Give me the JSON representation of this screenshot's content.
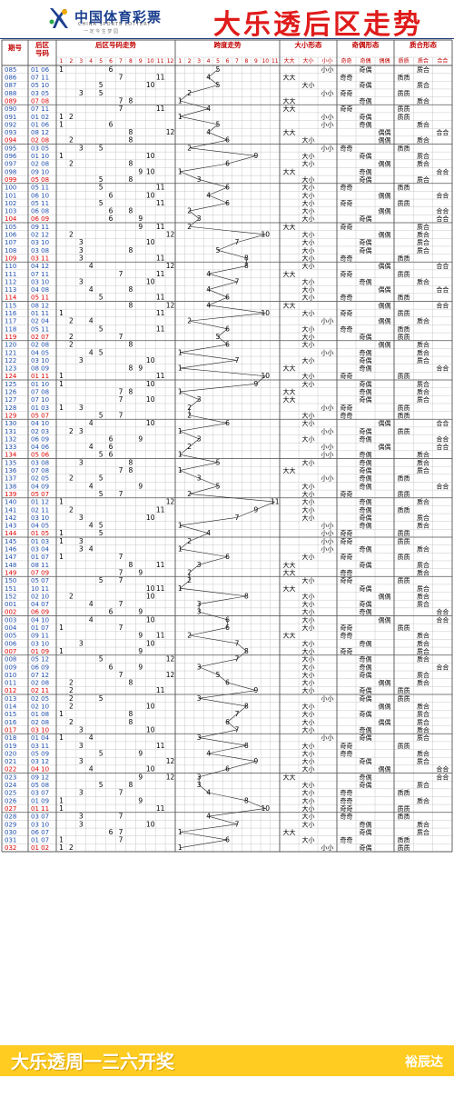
{
  "header": {
    "brand_name": "中国体育彩票",
    "brand_sub": "CHINA SPORTS LOTTERY",
    "brand_slogan": "一 定 今 生 梦 园",
    "title": "大乐透后区走势",
    "colors": {
      "title": "#e01b1b",
      "brand": "#1b3f8f",
      "red_period": "#e00000",
      "blue_period": "#1f4fae"
    }
  },
  "columns": {
    "period": "期号",
    "back_nums": "后区号码",
    "trend": "后区号码走势",
    "span": "跨度走势",
    "size": "大小形态",
    "parity": "奇偶形态",
    "prime": "质合形态",
    "trend_cells": [
      "1",
      "2",
      "3",
      "4",
      "5",
      "6",
      "7",
      "8",
      "9",
      "10",
      "11",
      "12"
    ],
    "span_cells": [
      "1",
      "2",
      "3",
      "4",
      "5",
      "6",
      "7",
      "8",
      "9",
      "10",
      "11"
    ],
    "size_cells": [
      "大大",
      "大小",
      "小小"
    ],
    "parity_cells": [
      "奇奇",
      "奇偶",
      "偶偶"
    ],
    "prime_cells": [
      "质质",
      "质合",
      "合合"
    ]
  },
  "footer": {
    "text": "大乐透周一三六开奖",
    "brand": "裕辰达"
  },
  "rows": [
    {
      "p": "085",
      "n": "01 06",
      "sp": 5,
      "sz": "小小",
      "pa": "奇偶",
      "pr": "质合"
    },
    {
      "p": "086",
      "n": "07 11",
      "sp": 4,
      "sz": "大大",
      "pa": "奇奇",
      "pr": "质质"
    },
    {
      "p": "087",
      "n": "05 10",
      "sp": 5,
      "sz": "大小",
      "pa": "奇偶",
      "pr": "质合"
    },
    {
      "p": "088",
      "n": "03 05",
      "sp": 2,
      "sz": "小小",
      "pa": "奇奇",
      "pr": "质质"
    },
    {
      "p": "089",
      "n": "07 08",
      "sp": 1,
      "sz": "大大",
      "pa": "奇偶",
      "pr": "质合"
    },
    {
      "p": "090",
      "n": "07 11",
      "sp": 4,
      "sz": "大大",
      "pa": "奇奇",
      "pr": "质质"
    },
    {
      "p": "091",
      "n": "01 02",
      "sp": 1,
      "sz": "小小",
      "pa": "奇偶",
      "pr": "质质"
    },
    {
      "p": "092",
      "n": "01 06",
      "sp": 5,
      "sz": "小小",
      "pa": "奇偶",
      "pr": "质合"
    },
    {
      "p": "093",
      "n": "08 12",
      "sp": 4,
      "sz": "大大",
      "pa": "偶偶",
      "pr": "合合"
    },
    {
      "p": "094",
      "n": "02 08",
      "sp": 6,
      "sz": "大小",
      "pa": "偶偶",
      "pr": "质合"
    },
    {
      "p": "095",
      "n": "03 05",
      "sp": 2,
      "sz": "小小",
      "pa": "奇奇",
      "pr": "质质"
    },
    {
      "p": "096",
      "n": "01 10",
      "sp": 9,
      "sz": "大小",
      "pa": "奇偶",
      "pr": "质合"
    },
    {
      "p": "097",
      "n": "02 08",
      "sp": 6,
      "sz": "大小",
      "pa": "偶偶",
      "pr": "质合"
    },
    {
      "p": "098",
      "n": "09 10",
      "sp": 1,
      "sz": "大大",
      "pa": "奇偶",
      "pr": "合合"
    },
    {
      "p": "099",
      "n": "05 08",
      "sp": 3,
      "sz": "大小",
      "pa": "奇偶",
      "pr": "质合"
    },
    {
      "p": "100",
      "n": "05 11",
      "sp": 6,
      "sz": "大小",
      "pa": "奇奇",
      "pr": "质质"
    },
    {
      "p": "101",
      "n": "06 10",
      "sp": 4,
      "sz": "大小",
      "pa": "偶偶",
      "pr": "合合"
    },
    {
      "p": "102",
      "n": "05 11",
      "sp": 6,
      "sz": "大小",
      "pa": "奇奇",
      "pr": "质质"
    },
    {
      "p": "103",
      "n": "06 08",
      "sp": 2,
      "sz": "大小",
      "pa": "偶偶",
      "pr": "合合"
    },
    {
      "p": "104",
      "n": "06 09",
      "sp": 3,
      "sz": "大小",
      "pa": "奇偶",
      "pr": "合合"
    },
    {
      "p": "105",
      "n": "09 11",
      "sp": 2,
      "sz": "大大",
      "pa": "奇奇",
      "pr": "质合"
    },
    {
      "p": "106",
      "n": "02 12",
      "sp": 10,
      "sz": "大小",
      "pa": "偶偶",
      "pr": "质合"
    },
    {
      "p": "107",
      "n": "03 10",
      "sp": 7,
      "sz": "大小",
      "pa": "奇偶",
      "pr": "质合"
    },
    {
      "p": "108",
      "n": "03 08",
      "sp": 5,
      "sz": "大小",
      "pa": "奇偶",
      "pr": "质合"
    },
    {
      "p": "109",
      "n": "03 11",
      "sp": 8,
      "sz": "大小",
      "pa": "奇奇",
      "pr": "质质"
    },
    {
      "p": "110",
      "n": "04 12",
      "sp": 8,
      "sz": "大小",
      "pa": "偶偶",
      "pr": "合合"
    },
    {
      "p": "111",
      "n": "07 11",
      "sp": 4,
      "sz": "大大",
      "pa": "奇奇",
      "pr": "质质"
    },
    {
      "p": "112",
      "n": "03 10",
      "sp": 7,
      "sz": "大小",
      "pa": "奇偶",
      "pr": "质合"
    },
    {
      "p": "113",
      "n": "04 08",
      "sp": 4,
      "sz": "大小",
      "pa": "偶偶",
      "pr": "合合"
    },
    {
      "p": "114",
      "n": "05 11",
      "sp": 6,
      "sz": "大小",
      "pa": "奇奇",
      "pr": "质质"
    },
    {
      "p": "115",
      "n": "08 12",
      "sp": 4,
      "sz": "大大",
      "pa": "偶偶",
      "pr": "合合"
    },
    {
      "p": "116",
      "n": "01 11",
      "sp": 10,
      "sz": "大小",
      "pa": "奇奇",
      "pr": "质质"
    },
    {
      "p": "117",
      "n": "02 04",
      "sp": 2,
      "sz": "小小",
      "pa": "偶偶",
      "pr": "质合"
    },
    {
      "p": "118",
      "n": "05 11",
      "sp": 6,
      "sz": "大小",
      "pa": "奇奇",
      "pr": "质质"
    },
    {
      "p": "119",
      "n": "02 07",
      "sp": 5,
      "sz": "大小",
      "pa": "奇偶",
      "pr": "质质"
    },
    {
      "p": "120",
      "n": "02 08",
      "sp": 6,
      "sz": "大小",
      "pa": "偶偶",
      "pr": "质合"
    },
    {
      "p": "121",
      "n": "04 05",
      "sp": 1,
      "sz": "小小",
      "pa": "奇偶",
      "pr": "质合"
    },
    {
      "p": "122",
      "n": "03 10",
      "sp": 7,
      "sz": "大小",
      "pa": "奇偶",
      "pr": "质合"
    },
    {
      "p": "123",
      "n": "08 09",
      "sp": 1,
      "sz": "大大",
      "pa": "奇偶",
      "pr": "合合"
    },
    {
      "p": "124",
      "n": "01 11",
      "sp": 10,
      "sz": "大小",
      "pa": "奇奇",
      "pr": "质质"
    },
    {
      "p": "125",
      "n": "01 10",
      "sp": 9,
      "sz": "大小",
      "pa": "奇偶",
      "pr": "质合"
    },
    {
      "p": "126",
      "n": "07 08",
      "sp": 1,
      "sz": "大大",
      "pa": "奇偶",
      "pr": "质合"
    },
    {
      "p": "127",
      "n": "07 10",
      "sp": 3,
      "sz": "大大",
      "pa": "奇偶",
      "pr": "质合"
    },
    {
      "p": "128",
      "n": "01 03",
      "sp": 2,
      "sz": "小小",
      "pa": "奇奇",
      "pr": "质质"
    },
    {
      "p": "129",
      "n": "05 07",
      "sp": 2,
      "sz": "大小",
      "pa": "奇奇",
      "pr": "质质"
    },
    {
      "p": "130",
      "n": "04 10",
      "sp": 6,
      "sz": "大小",
      "pa": "偶偶",
      "pr": "合合"
    },
    {
      "p": "131",
      "n": "02 03",
      "sp": 1,
      "sz": "小小",
      "pa": "奇偶",
      "pr": "质质"
    },
    {
      "p": "132",
      "n": "06 09",
      "sp": 3,
      "sz": "大小",
      "pa": "奇偶",
      "pr": "合合"
    },
    {
      "p": "133",
      "n": "04 06",
      "sp": 2,
      "sz": "小小",
      "pa": "偶偶",
      "pr": "合合"
    },
    {
      "p": "134",
      "n": "05 06",
      "sp": 1,
      "sz": "小小",
      "pa": "奇偶",
      "pr": "质合"
    },
    {
      "p": "135",
      "n": "03 08",
      "sp": 5,
      "sz": "大小",
      "pa": "奇偶",
      "pr": "质合"
    },
    {
      "p": "136",
      "n": "07 08",
      "sp": 1,
      "sz": "大大",
      "pa": "奇偶",
      "pr": "质合"
    },
    {
      "p": "137",
      "n": "02 05",
      "sp": 3,
      "sz": "小小",
      "pa": "奇偶",
      "pr": "质质"
    },
    {
      "p": "138",
      "n": "04 09",
      "sp": 5,
      "sz": "大小",
      "pa": "奇偶",
      "pr": "合合"
    },
    {
      "p": "139",
      "n": "05 07",
      "sp": 2,
      "sz": "大小",
      "pa": "奇奇",
      "pr": "质质"
    },
    {
      "p": "140",
      "n": "01 12",
      "sp": 11,
      "sz": "大小",
      "pa": "奇偶",
      "pr": "质合"
    },
    {
      "p": "141",
      "n": "02 11",
      "sp": 9,
      "sz": "大小",
      "pa": "奇偶",
      "pr": "质质"
    },
    {
      "p": "142",
      "n": "03 10",
      "sp": 7,
      "sz": "大小",
      "pa": "奇偶",
      "pr": "质合"
    },
    {
      "p": "143",
      "n": "04 05",
      "sp": 1,
      "sz": "小小",
      "pa": "奇偶",
      "pr": "质合"
    },
    {
      "p": "144",
      "n": "01 05",
      "sp": 4,
      "sz": "小小",
      "pa": "奇奇",
      "pr": "质质"
    },
    {
      "p": "145",
      "n": "01 03",
      "sp": 2,
      "sz": "小小",
      "pa": "奇奇",
      "pr": "质质"
    },
    {
      "p": "146",
      "n": "03 04",
      "sp": 1,
      "sz": "小小",
      "pa": "奇偶",
      "pr": "质合"
    },
    {
      "p": "147",
      "n": "01 07",
      "sp": 6,
      "sz": "大小",
      "pa": "奇奇",
      "pr": "质质"
    },
    {
      "p": "148",
      "n": "08 11",
      "sp": 3,
      "sz": "大大",
      "pa": "奇偶",
      "pr": "质合"
    },
    {
      "p": "149",
      "n": "07 09",
      "sp": 2,
      "sz": "大大",
      "pa": "奇奇",
      "pr": "质合"
    },
    {
      "p": "150",
      "n": "05 07",
      "sp": 2,
      "sz": "大小",
      "pa": "奇奇",
      "pr": "质质"
    },
    {
      "p": "151",
      "n": "10 11",
      "sp": 1,
      "sz": "大大",
      "pa": "奇偶",
      "pr": "质合"
    },
    {
      "p": "152",
      "n": "02 10",
      "sp": 8,
      "sz": "大小",
      "pa": "偶偶",
      "pr": "质合"
    },
    {
      "p": "001",
      "n": "04 07",
      "sp": 3,
      "sz": "大小",
      "pa": "奇偶",
      "pr": "质合"
    },
    {
      "p": "002",
      "n": "06 09",
      "sp": 3,
      "sz": "大小",
      "pa": "奇偶",
      "pr": "合合"
    },
    {
      "p": "003",
      "n": "04 10",
      "sp": 6,
      "sz": "大小",
      "pa": "偶偶",
      "pr": "合合"
    },
    {
      "p": "004",
      "n": "01 07",
      "sp": 6,
      "sz": "大小",
      "pa": "奇奇",
      "pr": "质质"
    },
    {
      "p": "005",
      "n": "09 11",
      "sp": 2,
      "sz": "大大",
      "pa": "奇奇",
      "pr": "质合"
    },
    {
      "p": "006",
      "n": "03 10",
      "sp": 7,
      "sz": "大小",
      "pa": "奇偶",
      "pr": "质合"
    },
    {
      "p": "007",
      "n": "01 09",
      "sp": 8,
      "sz": "大小",
      "pa": "奇奇",
      "pr": "质合"
    },
    {
      "p": "008",
      "n": "05 12",
      "sp": 7,
      "sz": "大小",
      "pa": "奇偶",
      "pr": "质合"
    },
    {
      "p": "009",
      "n": "06 09",
      "sp": 3,
      "sz": "大小",
      "pa": "奇偶",
      "pr": "合合"
    },
    {
      "p": "010",
      "n": "07 12",
      "sp": 5,
      "sz": "大小",
      "pa": "奇偶",
      "pr": "质合"
    },
    {
      "p": "011",
      "n": "02 08",
      "sp": 6,
      "sz": "大小",
      "pa": "偶偶",
      "pr": "质合"
    },
    {
      "p": "012",
      "n": "02 11",
      "sp": 9,
      "sz": "大小",
      "pa": "奇偶",
      "pr": "质质"
    },
    {
      "p": "013",
      "n": "02 05",
      "sp": 3,
      "sz": "小小",
      "pa": "奇偶",
      "pr": "质质"
    },
    {
      "p": "014",
      "n": "02 10",
      "sp": 8,
      "sz": "大小",
      "pa": "偶偶",
      "pr": "质合"
    },
    {
      "p": "015",
      "n": "01 08",
      "sp": 7,
      "sz": "大小",
      "pa": "奇偶",
      "pr": "质合"
    },
    {
      "p": "016",
      "n": "02 08",
      "sp": 6,
      "sz": "大小",
      "pa": "偶偶",
      "pr": "质合"
    },
    {
      "p": "017",
      "n": "03 10",
      "sp": 7,
      "sz": "大小",
      "pa": "奇偶",
      "pr": "质合"
    },
    {
      "p": "018",
      "n": "01 04",
      "sp": 3,
      "sz": "小小",
      "pa": "奇偶",
      "pr": "质合"
    },
    {
      "p": "019",
      "n": "03 11",
      "sp": 8,
      "sz": "大小",
      "pa": "奇奇",
      "pr": "质质"
    },
    {
      "p": "020",
      "n": "05 09",
      "sp": 4,
      "sz": "大小",
      "pa": "奇奇",
      "pr": "质合"
    },
    {
      "p": "021",
      "n": "03 12",
      "sp": 9,
      "sz": "大小",
      "pa": "奇偶",
      "pr": "质合"
    },
    {
      "p": "022",
      "n": "04 10",
      "sp": 6,
      "sz": "大小",
      "pa": "偶偶",
      "pr": "合合"
    },
    {
      "p": "023",
      "n": "09 12",
      "sp": 3,
      "sz": "大大",
      "pa": "奇偶",
      "pr": "合合"
    },
    {
      "p": "024",
      "n": "05 08",
      "sp": 3,
      "sz": "大小",
      "pa": "奇偶",
      "pr": "质合"
    },
    {
      "p": "025",
      "n": "03 07",
      "sp": 4,
      "sz": "大小",
      "pa": "奇奇",
      "pr": "质质"
    },
    {
      "p": "026",
      "n": "01 09",
      "sp": 8,
      "sz": "大小",
      "pa": "奇奇",
      "pr": "质合"
    },
    {
      "p": "027",
      "n": "01 11",
      "sp": 10,
      "sz": "大小",
      "pa": "奇奇",
      "pr": "质质"
    },
    {
      "p": "028",
      "n": "03 07",
      "sp": 4,
      "sz": "大小",
      "pa": "奇奇",
      "pr": "质质"
    },
    {
      "p": "029",
      "n": "03 10",
      "sp": 7,
      "sz": "大小",
      "pa": "奇偶",
      "pr": "质合"
    },
    {
      "p": "030",
      "n": "06 07",
      "sp": 1,
      "sz": "大大",
      "pa": "奇偶",
      "pr": "质合"
    },
    {
      "p": "031",
      "n": "01 07",
      "sp": 6,
      "sz": "大小",
      "pa": "奇奇",
      "pr": "质质"
    },
    {
      "p": "032",
      "n": "01 02",
      "sp": 1,
      "sz": "小小",
      "pa": "奇偶",
      "pr": "质质"
    }
  ]
}
